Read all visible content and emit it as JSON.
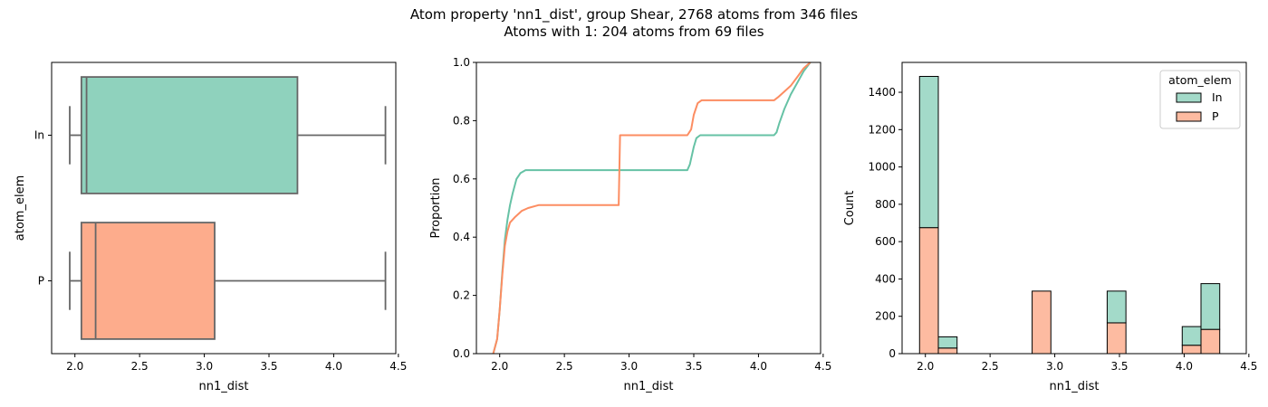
{
  "figure": {
    "title_line1": "Atom property 'nn1_dist', group Shear, 2768 atoms from 346 files",
    "title_line2": "Atoms with 1: 204 atoms from 69 files"
  },
  "colors": {
    "In": "#66c2a5",
    "P": "#fc8d62",
    "box_edge": "#666666",
    "hist_edge": "#000000"
  },
  "chart_data": [
    {
      "type": "box",
      "xlabel": "nn1_dist",
      "ylabel": "atom_elem",
      "xlim": [
        1.82,
        4.48
      ],
      "xticks": [
        "2.0",
        "2.5",
        "3.0",
        "3.5",
        "4.0",
        "4.5"
      ],
      "xtick_values": [
        2.0,
        2.5,
        3.0,
        3.5,
        4.0,
        4.5
      ],
      "categories": [
        "In",
        "P"
      ],
      "boxes": [
        {
          "name": "In",
          "whisker_low": 1.96,
          "q1": 2.05,
          "median": 2.09,
          "q3": 3.72,
          "whisker_high": 4.4,
          "color": "#66c2a5"
        },
        {
          "name": "P",
          "whisker_low": 1.96,
          "q1": 2.05,
          "median": 2.16,
          "q3": 3.08,
          "whisker_high": 4.4,
          "color": "#fc8d62"
        }
      ]
    },
    {
      "type": "line",
      "subtype": "ecdf",
      "xlabel": "nn1_dist",
      "ylabel": "Proportion",
      "xlim": [
        1.82,
        4.48
      ],
      "ylim": [
        0,
        1.0
      ],
      "xticks": [
        "2.0",
        "2.5",
        "3.0",
        "3.5",
        "4.0",
        "4.5"
      ],
      "xtick_values": [
        2.0,
        2.5,
        3.0,
        3.5,
        4.0,
        4.5
      ],
      "yticks": [
        "0.0",
        "0.2",
        "0.4",
        "0.6",
        "0.8",
        "1.0"
      ],
      "ytick_values": [
        0.0,
        0.2,
        0.4,
        0.6,
        0.8,
        1.0
      ],
      "series": [
        {
          "name": "In",
          "color": "#66c2a5",
          "x": [
            1.95,
            1.98,
            2.0,
            2.02,
            2.04,
            2.06,
            2.08,
            2.1,
            2.13,
            2.16,
            2.2,
            3.45,
            3.47,
            3.5,
            3.52,
            3.55,
            4.12,
            4.14,
            4.16,
            4.2,
            4.25,
            4.3,
            4.35,
            4.4
          ],
          "y": [
            0.0,
            0.05,
            0.15,
            0.28,
            0.39,
            0.46,
            0.51,
            0.55,
            0.6,
            0.62,
            0.63,
            0.63,
            0.65,
            0.71,
            0.74,
            0.75,
            0.75,
            0.76,
            0.79,
            0.84,
            0.89,
            0.93,
            0.97,
            1.0
          ]
        },
        {
          "name": "P",
          "color": "#fc8d62",
          "x": [
            1.95,
            1.98,
            2.0,
            2.02,
            2.04,
            2.06,
            2.08,
            2.12,
            2.17,
            2.22,
            2.3,
            2.92,
            2.93,
            2.95,
            3.45,
            3.48,
            3.5,
            3.53,
            3.56,
            4.12,
            4.15,
            4.2,
            4.25,
            4.3,
            4.35,
            4.4
          ],
          "y": [
            0.0,
            0.05,
            0.15,
            0.27,
            0.37,
            0.42,
            0.45,
            0.47,
            0.49,
            0.5,
            0.51,
            0.51,
            0.75,
            0.75,
            0.75,
            0.77,
            0.82,
            0.86,
            0.87,
            0.87,
            0.88,
            0.9,
            0.92,
            0.95,
            0.98,
            1.0
          ]
        }
      ]
    },
    {
      "type": "bar",
      "subtype": "stacked-histogram",
      "xlabel": "nn1_dist",
      "ylabel": "Count",
      "xlim": [
        1.82,
        4.48
      ],
      "ylim": [
        0,
        1560
      ],
      "xticks": [
        "2.0",
        "2.5",
        "3.0",
        "3.5",
        "4.0",
        "4.5"
      ],
      "xtick_values": [
        2.0,
        2.5,
        3.0,
        3.5,
        4.0,
        4.5
      ],
      "yticks": [
        "0",
        "200",
        "400",
        "600",
        "800",
        "1000",
        "1200",
        "1400"
      ],
      "ytick_values": [
        0,
        200,
        400,
        600,
        800,
        1000,
        1200,
        1400
      ],
      "bin_edges": [
        1.955,
        2.1,
        2.245,
        2.39,
        2.535,
        2.68,
        2.825,
        2.97,
        3.115,
        3.26,
        3.405,
        3.55,
        3.695,
        3.84,
        3.985,
        4.13,
        4.275,
        4.42
      ],
      "legend_title": "atom_elem",
      "legend_position": "top-right",
      "series": [
        {
          "name": "In",
          "color": "#66c2a5",
          "values": [
            810,
            60,
            0,
            0,
            0,
            0,
            0,
            0,
            0,
            0,
            170,
            0,
            0,
            0,
            100,
            245,
            0
          ]
        },
        {
          "name": "P",
          "color": "#fc8d62",
          "values": [
            675,
            30,
            0,
            0,
            0,
            0,
            335,
            0,
            0,
            0,
            165,
            0,
            0,
            0,
            45,
            130,
            0
          ]
        }
      ]
    }
  ]
}
